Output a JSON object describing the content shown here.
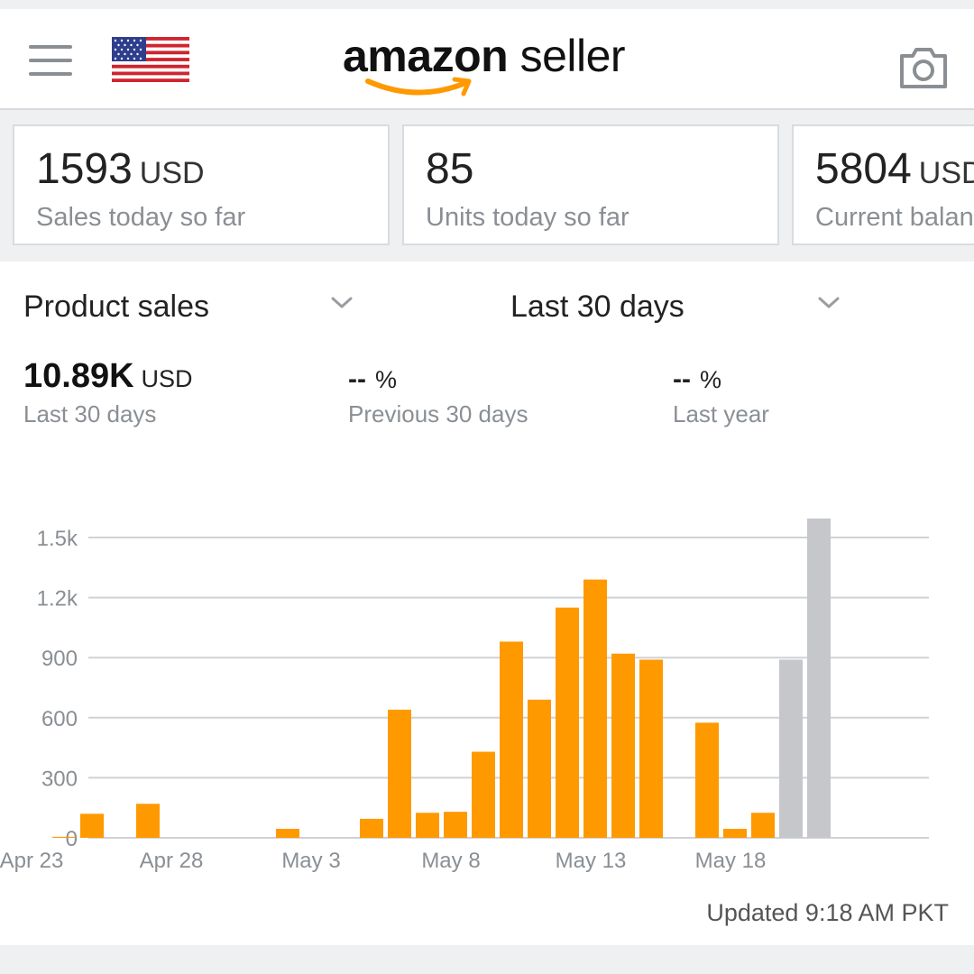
{
  "header": {
    "logo_brand": "amazon",
    "logo_product": "seller",
    "flag": "us-flag-icon",
    "menu": "menu-icon",
    "camera": "camera-icon"
  },
  "cards": [
    {
      "value": "1593",
      "unit": "USD",
      "label": "Sales today so far"
    },
    {
      "value": "85",
      "unit": "",
      "label": "Units today so far"
    },
    {
      "value": "5804",
      "unit": "USD",
      "label": "Current balance"
    }
  ],
  "selectors": {
    "metric": "Product sales",
    "period": "Last 30 days"
  },
  "metrics": [
    {
      "value": "10.89K",
      "unit": "USD",
      "label": "Last 30 days"
    },
    {
      "value": "--",
      "unit": "%",
      "label": "Previous 30 days"
    },
    {
      "value": "--",
      "unit": "%",
      "label": "Last year"
    }
  ],
  "chart_data": {
    "type": "bar",
    "categories": [
      "Apr 23",
      "Apr 24",
      "Apr 25",
      "Apr 26",
      "Apr 27",
      "Apr 28",
      "Apr 29",
      "Apr 30",
      "May 1",
      "May 2",
      "May 3",
      "May 4",
      "May 5",
      "May 6",
      "May 7",
      "May 8",
      "May 9",
      "May 10",
      "May 11",
      "May 12",
      "May 13",
      "May 14",
      "May 15",
      "May 16",
      "May 17",
      "May 18",
      "May 19",
      "May 20",
      "May 21",
      "May 22"
    ],
    "values": [
      0,
      5,
      120,
      0,
      170,
      0,
      0,
      0,
      0,
      45,
      0,
      0,
      95,
      640,
      125,
      130,
      430,
      980,
      690,
      1150,
      1290,
      920,
      890,
      0,
      575,
      45,
      125,
      890,
      1595,
      0
    ],
    "highlight_colors": [
      "orange",
      "orange",
      "orange",
      "orange",
      "orange",
      "orange",
      "orange",
      "orange",
      "orange",
      "orange",
      "orange",
      "orange",
      "orange",
      "orange",
      "orange",
      "orange",
      "orange",
      "orange",
      "orange",
      "orange",
      "orange",
      "orange",
      "orange",
      "orange",
      "orange",
      "orange",
      "orange",
      "gray",
      "gray",
      "gray"
    ],
    "x_tick_labels": [
      "Apr 23",
      "Apr 28",
      "May 3",
      "May 8",
      "May 13",
      "May 18"
    ],
    "y_ticks": [
      0,
      300,
      600,
      900,
      1200,
      1500
    ],
    "y_tick_labels": [
      "0",
      "300",
      "600",
      "900",
      "1.2k",
      "1.5k"
    ],
    "ylim": [
      0,
      1500
    ],
    "grid": true,
    "colors": {
      "primary": "#ff9900",
      "projected": "#c6c7cb",
      "grid": "#cfd2d5",
      "axis_text": "#8a8f94"
    }
  },
  "updated": "Updated 9:18 AM PKT"
}
